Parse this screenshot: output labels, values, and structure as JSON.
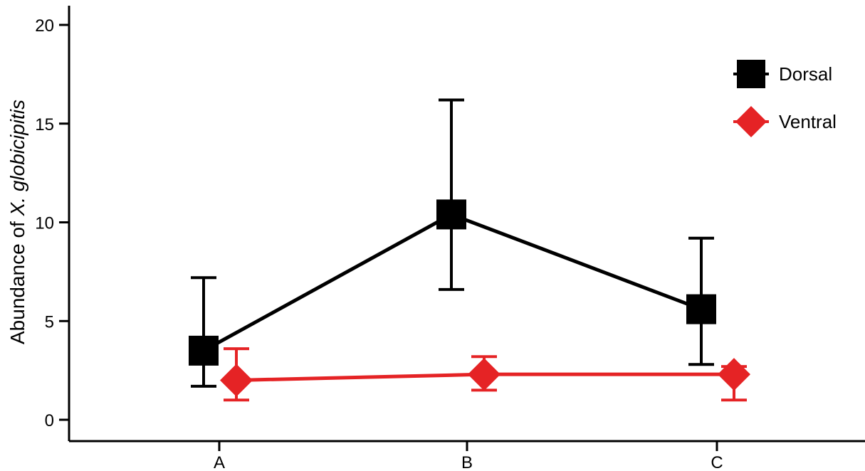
{
  "chart_data": {
    "type": "line",
    "categories": [
      "A",
      "B",
      "C"
    ],
    "ylabel_prefix": "Abundance of ",
    "ylabel_species": "X. globicipitis",
    "xlabel": "",
    "ylim": [
      0,
      20
    ],
    "yticks": [
      0,
      5,
      10,
      15,
      20
    ],
    "grid": false,
    "legend_position": "top-right",
    "series": [
      {
        "name": "Dorsal",
        "color": "#000000",
        "marker": "square",
        "values": [
          3.5,
          10.4,
          5.6
        ],
        "error_low": [
          1.7,
          6.6,
          2.8
        ],
        "error_high": [
          7.2,
          16.2,
          9.2
        ]
      },
      {
        "name": "Ventral",
        "color": "#e52325",
        "marker": "diamond",
        "values": [
          2.0,
          2.3,
          2.3
        ],
        "error_low": [
          1.0,
          1.5,
          1.0
        ],
        "error_high": [
          3.6,
          3.2,
          2.7
        ]
      }
    ]
  }
}
